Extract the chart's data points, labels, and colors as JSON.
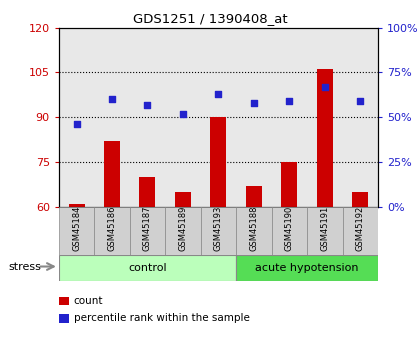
{
  "title": "GDS1251 / 1390408_at",
  "samples": [
    "GSM45184",
    "GSM45186",
    "GSM45187",
    "GSM45189",
    "GSM45193",
    "GSM45188",
    "GSM45190",
    "GSM45191",
    "GSM45192"
  ],
  "bar_values": [
    61,
    82,
    70,
    65,
    90,
    67,
    75,
    106,
    65
  ],
  "dot_values": [
    46,
    60,
    57,
    52,
    63,
    58,
    59,
    67,
    59
  ],
  "bar_color": "#cc0000",
  "dot_color": "#2222cc",
  "ylim_left": [
    60,
    120
  ],
  "ylim_right": [
    0,
    100
  ],
  "yticks_left": [
    60,
    75,
    90,
    105,
    120
  ],
  "yticks_right": [
    0,
    25,
    50,
    75,
    100
  ],
  "n_control": 5,
  "n_acute": 4,
  "group_label_control": "control",
  "group_label_acute": "acute hypotension",
  "stress_label": "stress",
  "legend_count": "count",
  "legend_percentile": "percentile rank within the sample",
  "bg_plot": "#e8e8e8",
  "bg_control": "#bbffbb",
  "bg_acute": "#55dd55",
  "tick_color_left": "#cc0000",
  "tick_color_right": "#2222cc",
  "bar_bottom": 60,
  "dotted_lines": [
    75,
    90,
    105
  ]
}
